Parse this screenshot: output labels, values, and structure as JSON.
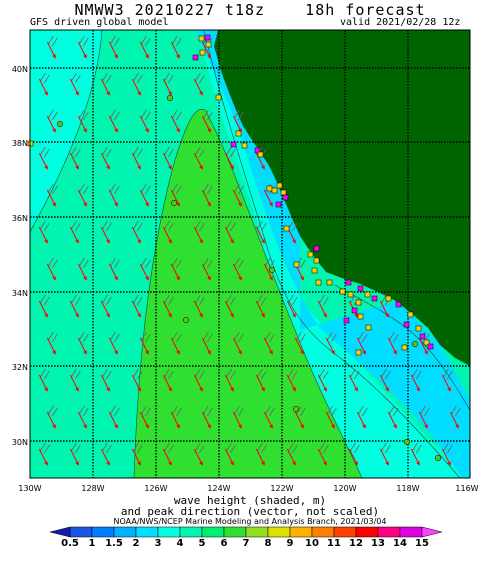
{
  "header": {
    "title": "NMWW3 20210227 t18z    18h forecast",
    "model": "GFS driven global model",
    "valid": "valid 2021/02/28 12z"
  },
  "axes": {
    "lat_labels": [
      "40N",
      "38N",
      "36N",
      "34N",
      "32N",
      "30N"
    ],
    "lon_labels": [
      "130W",
      "128W",
      "126W",
      "124W",
      "122W",
      "120W",
      "118W",
      "116W"
    ]
  },
  "caption": {
    "line1": "wave height (shaded, m)",
    "line2": "and peak direction (vector, not scaled)",
    "credit": "NOAA/NWS/NCEP Marine Modeling and Analysis Branch, 2021/03/04"
  },
  "colorbar": {
    "labels": [
      "0.5",
      "1",
      "1.5",
      "2",
      "3",
      "4",
      "5",
      "6",
      "7",
      "8",
      "9",
      "10",
      "11",
      "12",
      "13",
      "14",
      "15"
    ],
    "colors": [
      "#1a55e6",
      "#0080ff",
      "#00b0ff",
      "#00ddff",
      "#00ffe0",
      "#00f5b0",
      "#00ee70",
      "#30e030",
      "#90e020",
      "#e0e000",
      "#ffb000",
      "#ff8000",
      "#ff4000",
      "#ff0000",
      "#ff0080",
      "#e000e0"
    ]
  },
  "legend_colors": {
    "land": "#006400",
    "sea_1_5_2m": "#00ddff",
    "sea_2_3m": "#00f5b0",
    "sea_3_4m": "#00ee70",
    "sea_4_5m": "#30e030",
    "vector": "#ff0000"
  }
}
